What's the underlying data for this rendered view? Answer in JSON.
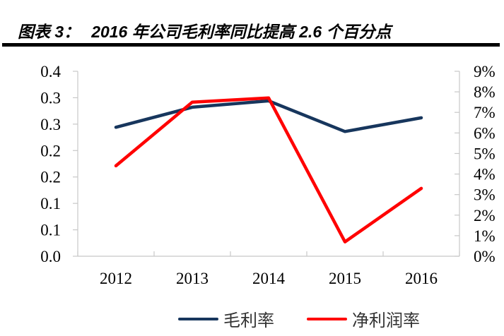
{
  "header": {
    "label": "图表 3：",
    "title": "2016 年公司毛利率同比提高 2.6 个百分点"
  },
  "chart_data": {
    "type": "line",
    "categories": [
      "2012",
      "2013",
      "2014",
      "2015",
      "2016"
    ],
    "series": [
      {
        "name": "毛利率",
        "axis": "left",
        "color": "#17365D",
        "values": [
          0.244,
          0.282,
          0.294,
          0.236,
          0.262
        ]
      },
      {
        "name": "净利润率",
        "axis": "right",
        "color": "#FF0000",
        "values": [
          0.044,
          0.075,
          0.077,
          0.007,
          0.033
        ]
      }
    ],
    "left_axis": {
      "min": 0,
      "max": 0.35,
      "step": 0.05,
      "tick_labels": [
        "0.4",
        "0.3",
        "0.3",
        "0.2",
        "0.2",
        "0.1",
        "0.1",
        "0.0"
      ]
    },
    "right_axis": {
      "min": 0,
      "max": 0.09,
      "step": 0.01,
      "tick_labels": [
        "9%",
        "8%",
        "7%",
        "6%",
        "5%",
        "4%",
        "3%",
        "2%",
        "1%",
        "0%"
      ]
    },
    "grid": false,
    "legend_position": "bottom",
    "colors": {
      "axis_line": "#C8C8C8",
      "tick_text": "#000000"
    }
  }
}
